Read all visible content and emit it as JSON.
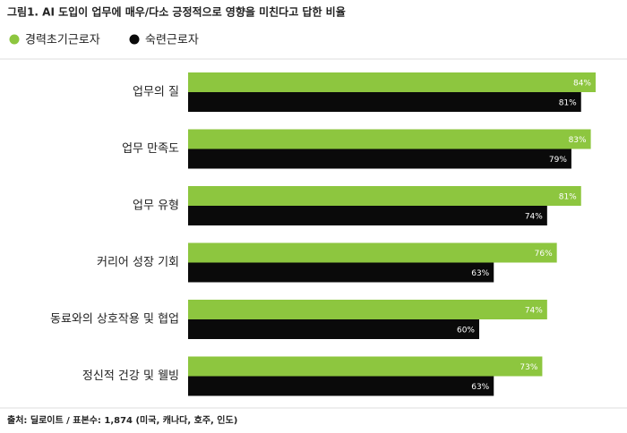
{
  "chart_data": {
    "type": "bar",
    "orientation": "horizontal",
    "title": "그림1. AI 도입이 업무에 매우/다소 긍정적으로 영향을 미친다고 답한 비율",
    "categories": [
      "업무의 질",
      "업무 만족도",
      "업무 유형",
      "커리어 성장 기회",
      "동료와의 상호작용 및 협업",
      "정신적 건강 및 웰빙"
    ],
    "series": [
      {
        "name": "경력초기근로자",
        "color": "#8dc63f",
        "values": [
          84,
          83,
          81,
          76,
          74,
          73
        ],
        "value_labels": [
          "84%",
          "83%",
          "81%",
          "76%",
          "74%",
          "73%"
        ]
      },
      {
        "name": "숙련근로자",
        "color": "#0a0a0a",
        "values": [
          81,
          79,
          74,
          63,
          60,
          63
        ],
        "value_labels": [
          "81%",
          "79%",
          "74%",
          "63%",
          "60%",
          "63%"
        ]
      }
    ],
    "source": "출처: 딜로이트 / 표본수: 1,874 (미국, 캐나다, 호주, 인도)"
  }
}
